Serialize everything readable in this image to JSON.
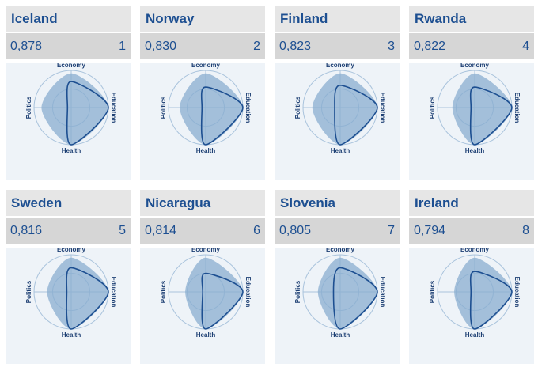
{
  "chart_data": {
    "type": "radar",
    "axes": [
      "Economy",
      "Education",
      "Health",
      "Politics"
    ],
    "countries": [
      {
        "name": "Iceland",
        "score": "0,878",
        "rank": "1"
      },
      {
        "name": "Norway",
        "score": "0,830",
        "rank": "2"
      },
      {
        "name": "Finland",
        "score": "0,823",
        "rank": "3"
      },
      {
        "name": "Rwanda",
        "score": "0,822",
        "rank": "4"
      },
      {
        "name": "Sweden",
        "score": "0,816",
        "rank": "5"
      },
      {
        "name": "Nicaragua",
        "score": "0,814",
        "rank": "6"
      },
      {
        "name": "Slovenia",
        "score": "0,805",
        "rank": "7"
      },
      {
        "name": "Ireland",
        "score": "0,794",
        "rank": "8"
      }
    ]
  },
  "colors": {
    "title": "#1d4f91",
    "fill": "#8aaed0",
    "outline": "#1d4f91",
    "grid": "#a9c3dc"
  }
}
